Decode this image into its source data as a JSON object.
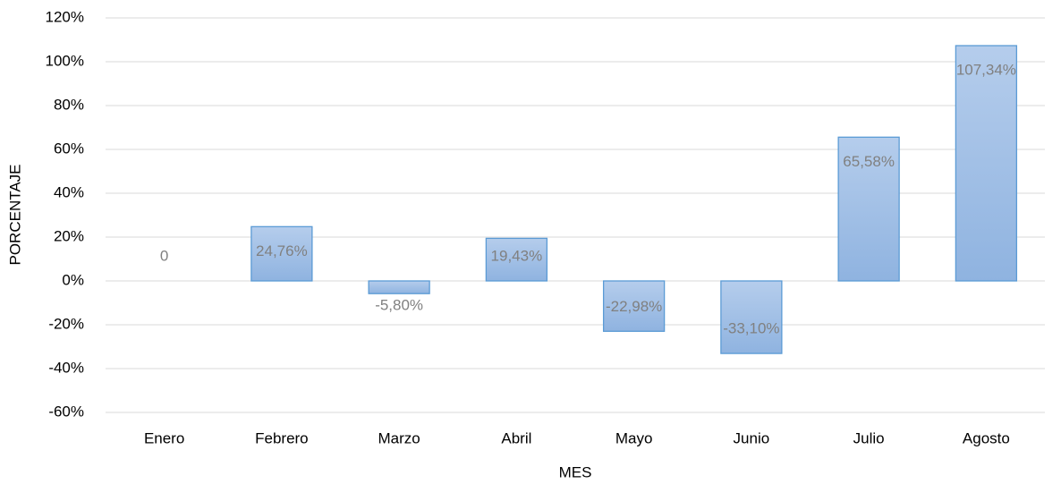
{
  "chart_data": {
    "type": "bar",
    "x_label": "MES",
    "y_label": "PORCENTAJE",
    "categories": [
      "Enero",
      "Febrero",
      "Marzo",
      "Abril",
      "Mayo",
      "Junio",
      "Julio",
      "Agosto"
    ],
    "values": [
      0,
      24.76,
      -5.8,
      19.43,
      -22.98,
      -33.1,
      65.58,
      107.34
    ],
    "value_labels": [
      "0",
      "24,76%",
      "-5,80%",
      "19,43%",
      "-22,98%",
      "-33,10%",
      "65,58%",
      "107,34%"
    ],
    "color": "#9dbde6",
    "ylim": [
      -60,
      120
    ],
    "yticks": [
      {
        "value": -60,
        "label": "-60%"
      },
      {
        "value": -40,
        "label": "-40%"
      },
      {
        "value": -20,
        "label": "-20%"
      },
      {
        "value": 0,
        "label": "0%"
      },
      {
        "value": 20,
        "label": "20%"
      },
      {
        "value": 40,
        "label": "40%"
      },
      {
        "value": 60,
        "label": "60%"
      },
      {
        "value": 80,
        "label": "80%"
      },
      {
        "value": 100,
        "label": "100%"
      },
      {
        "value": 120,
        "label": "120%"
      }
    ],
    "grid": true
  }
}
